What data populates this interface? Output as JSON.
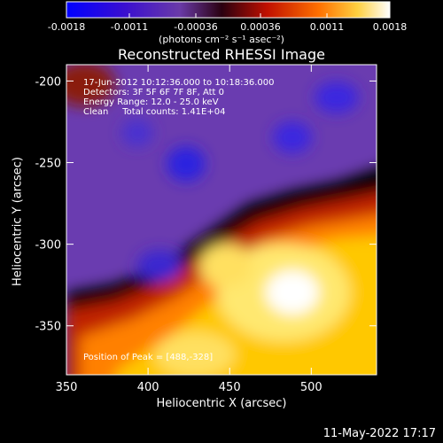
{
  "colorbar": {
    "tick_labels": [
      "-0.0018",
      "-0.0011",
      "-0.00036",
      "0.00036",
      "0.0011",
      "0.0018"
    ],
    "ticks": [
      -0.0018,
      -0.0011,
      -0.00036,
      0.00036,
      0.0011,
      0.0018
    ],
    "range": [
      -0.0018,
      0.0018
    ],
    "unit_label": "(photons cm⁻² s⁻¹ asec⁻²)"
  },
  "chart_data": {
    "type": "heatmap",
    "title": "Reconstructed RHESSI Image",
    "xlabel": "Heliocentric X (arcsec)",
    "ylabel": "Heliocentric Y (arcsec)",
    "xlim": [
      350,
      540
    ],
    "ylim": [
      -380,
      -190
    ],
    "x_ticks": [
      350,
      400,
      450,
      500
    ],
    "y_ticks": [
      -200,
      -250,
      -300,
      -350
    ],
    "annotations": [
      "17-Jun-2012 10:12:36.000 to 10:18:36.000",
      "Detectors: 3F 5F 6F 7F 8F, Att 0",
      "Energy Range: 12.0 - 25.0 keV",
      "Clean     Total counts: 1.41E+04"
    ],
    "peak_label": "Position of Peak = [488,-328]",
    "peak": [
      488,
      -328
    ],
    "color_scale": [
      "#0000ff",
      "#4000c0",
      "#8060c0",
      "#5a0000",
      "#d02000",
      "#ffb000",
      "#ffffff"
    ]
  },
  "footer": {
    "date": "11-May-2022 17:17"
  }
}
